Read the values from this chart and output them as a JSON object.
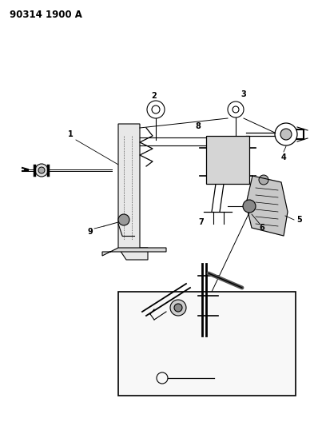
{
  "title": "90314 1900 A",
  "bg_color": "#ffffff",
  "fg_color": "#000000",
  "fig_width": 3.98,
  "fig_height": 5.33,
  "dpi": 100
}
